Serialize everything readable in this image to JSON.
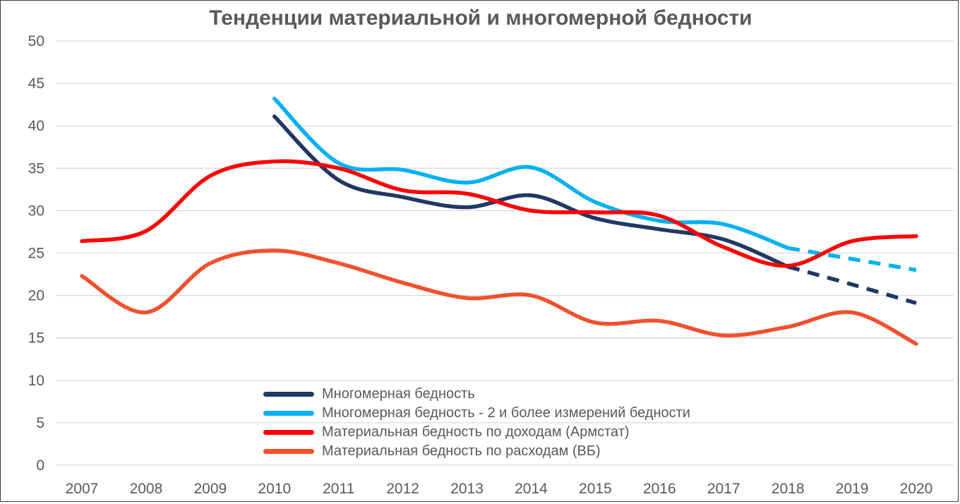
{
  "chart_data": {
    "type": "line",
    "title": "Тенденции материальной и многомерной бедности",
    "xlabel": "",
    "ylabel": "",
    "x": [
      2007,
      2008,
      2009,
      2010,
      2011,
      2012,
      2013,
      2014,
      2015,
      2016,
      2017,
      2018,
      2019,
      2020
    ],
    "y_ticks": [
      0,
      5,
      10,
      15,
      20,
      25,
      30,
      35,
      40,
      45,
      50
    ],
    "ylim": [
      0,
      50
    ],
    "grid": "horizontal-light-gray",
    "legend_position": "inside-bottom-center",
    "series": [
      {
        "name": "Многомерная бедность",
        "color": "#1F3864",
        "values": [
          null,
          null,
          null,
          41.1,
          33.6,
          31.6,
          30.4,
          31.8,
          29.1,
          27.8,
          26.6,
          23.4,
          21.3,
          19.1
        ],
        "dash_from_index": 11,
        "dash_note": "projected values 2018-2020 drawn as dashed line"
      },
      {
        "name": "Многомерная бедность - 2 и более измерений бедности",
        "color": "#00B0F0",
        "values": [
          null,
          null,
          null,
          43.2,
          35.6,
          34.8,
          33.3,
          35.1,
          31.0,
          28.8,
          28.4,
          25.6,
          24.3,
          23.0
        ],
        "dash_from_index": 11,
        "dash_note": "projected values 2018-2020 drawn as dashed line"
      },
      {
        "name": "Материальная бедность по доходам (Армстат)",
        "color": "#FF0000",
        "values": [
          26.4,
          27.6,
          34.1,
          35.8,
          35.0,
          32.4,
          32.0,
          30.0,
          29.8,
          29.4,
          25.7,
          23.5,
          26.4,
          27.0
        ],
        "dash_from_index": null
      },
      {
        "name": "Материальная бедность по расходам (ВБ)",
        "color": "#F1502E",
        "values": [
          22.3,
          18.0,
          23.8,
          25.3,
          23.8,
          21.5,
          19.7,
          20.0,
          16.8,
          17.0,
          15.3,
          16.3,
          18.0,
          14.3
        ],
        "dash_from_index": null
      }
    ],
    "style": {
      "gridline_color": "#D9D9D9",
      "axis_label_color": "#595959",
      "title_color": "#595959",
      "line_width": 5.5,
      "smoothed": true
    }
  }
}
